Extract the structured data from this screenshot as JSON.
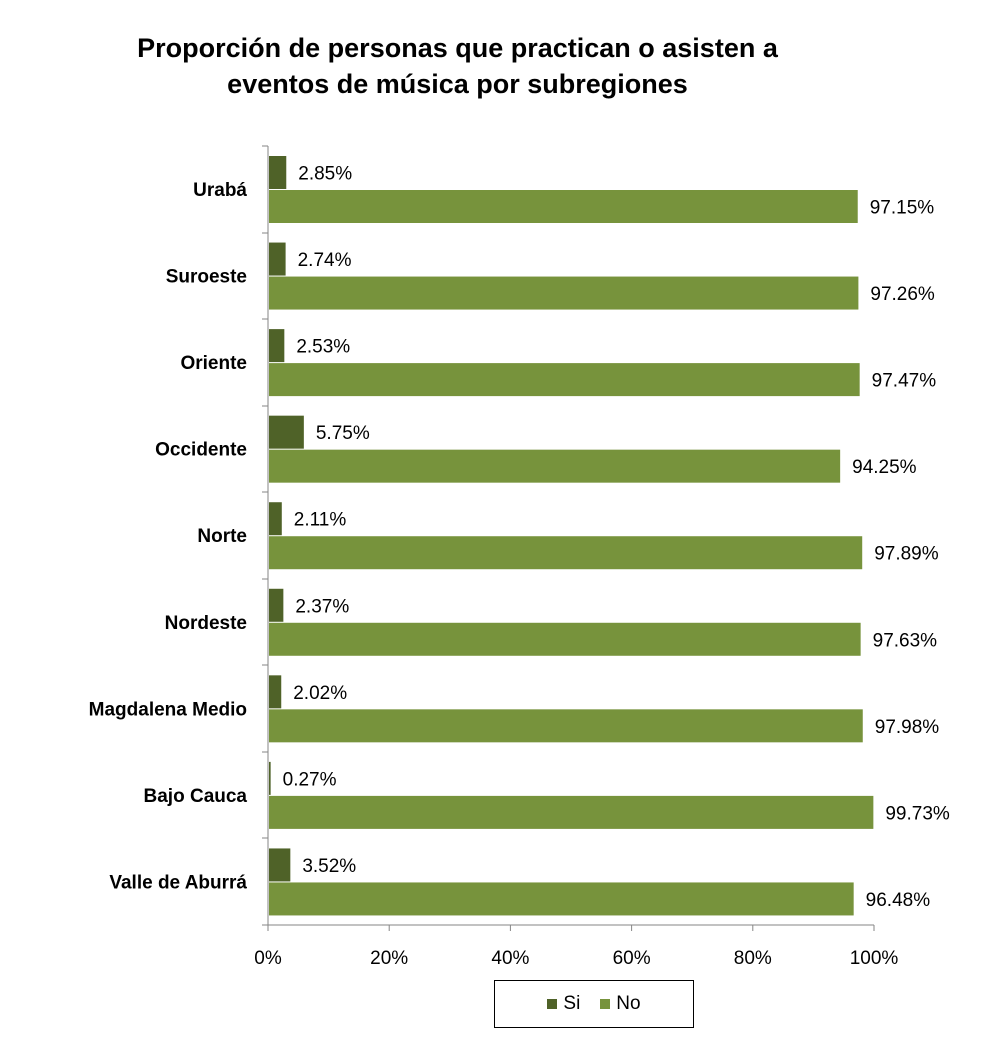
{
  "chart_data": {
    "type": "bar",
    "orientation": "horizontal",
    "title": "Proporción de personas que practican o asisten a\neventos de música por subregiones",
    "categories": [
      "Urabá",
      "Suroeste",
      "Oriente",
      "Occidente",
      "Norte",
      "Nordeste",
      "Magdalena Medio",
      "Bajo Cauca",
      "Valle de Aburrá"
    ],
    "series": [
      {
        "name": "Si",
        "color": "#4f6228",
        "values": [
          2.85,
          2.74,
          2.53,
          5.75,
          2.11,
          2.37,
          2.02,
          0.27,
          3.52
        ],
        "labels": [
          "2.85%",
          "2.74%",
          "2.53%",
          "5.75%",
          "2.11%",
          "2.37%",
          "2.02%",
          "0.27%",
          "3.52%"
        ]
      },
      {
        "name": "No",
        "color": "#77933c",
        "values": [
          97.15,
          97.26,
          97.47,
          94.25,
          97.89,
          97.63,
          97.98,
          99.73,
          96.48
        ],
        "labels": [
          "97.15%",
          "97.26%",
          "97.47%",
          "94.25%",
          "97.89%",
          "97.63%",
          "97.98%",
          "99.73%",
          "96.48%"
        ]
      }
    ],
    "x_ticks": [
      "0%",
      "20%",
      "40%",
      "60%",
      "80%",
      "100%"
    ],
    "xlim": [
      0,
      100
    ],
    "xlabel": "",
    "ylabel": "",
    "grid": false,
    "legend_position": "bottom"
  }
}
